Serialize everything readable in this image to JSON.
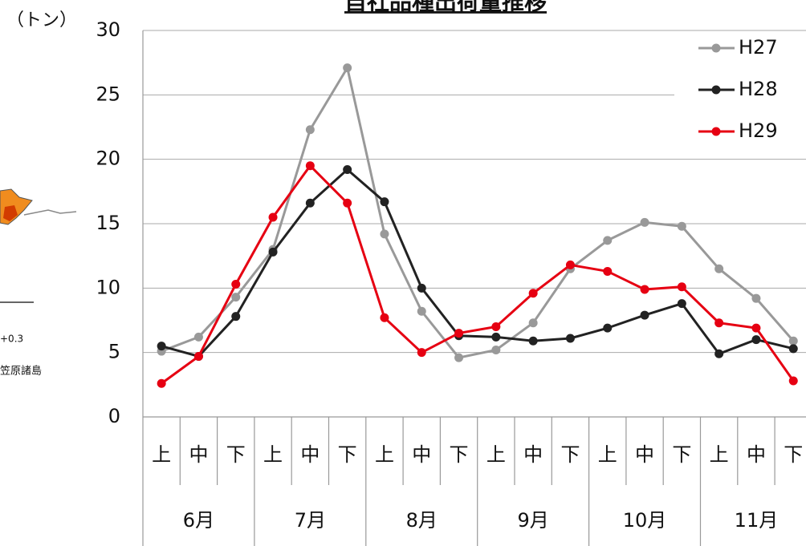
{
  "chart_data": {
    "type": "line",
    "title": "自社品種出荷量推移",
    "y_label": "（トン）",
    "annotations": [
      "+0.3",
      "笠原諸島"
    ],
    "categories": [
      "上",
      "中",
      "下",
      "上",
      "中",
      "下",
      "上",
      "中",
      "下",
      "上",
      "中",
      "下",
      "上",
      "中",
      "下",
      "上",
      "中",
      "下"
    ],
    "groups": [
      "6月",
      "7月",
      "8月",
      "9月",
      "10月",
      "11月"
    ],
    "series": [
      {
        "name": "H27",
        "color": "#999999",
        "values": [
          5.1,
          6.2,
          9.3,
          13.0,
          22.3,
          27.1,
          14.2,
          8.2,
          4.6,
          5.2,
          7.3,
          11.5,
          13.7,
          15.1,
          14.8,
          11.5,
          9.2,
          5.9
        ]
      },
      {
        "name": "H28",
        "color": "#222222",
        "values": [
          5.5,
          4.7,
          7.8,
          12.8,
          16.6,
          19.2,
          16.7,
          10.0,
          6.3,
          6.2,
          5.9,
          6.1,
          6.9,
          7.9,
          8.8,
          4.9,
          6.0,
          5.3
        ]
      },
      {
        "name": "H29",
        "color": "#e60012",
        "values": [
          2.6,
          4.7,
          10.3,
          15.5,
          19.5,
          16.6,
          7.7,
          5.0,
          6.5,
          7.0,
          9.6,
          11.8,
          11.3,
          9.9,
          10.1,
          7.3,
          6.9,
          2.8
        ]
      }
    ],
    "ylim": [
      0,
      30
    ],
    "yticks": [
      0,
      5,
      10,
      15,
      20,
      25,
      30
    ],
    "grid": true,
    "legend": "top-right"
  }
}
